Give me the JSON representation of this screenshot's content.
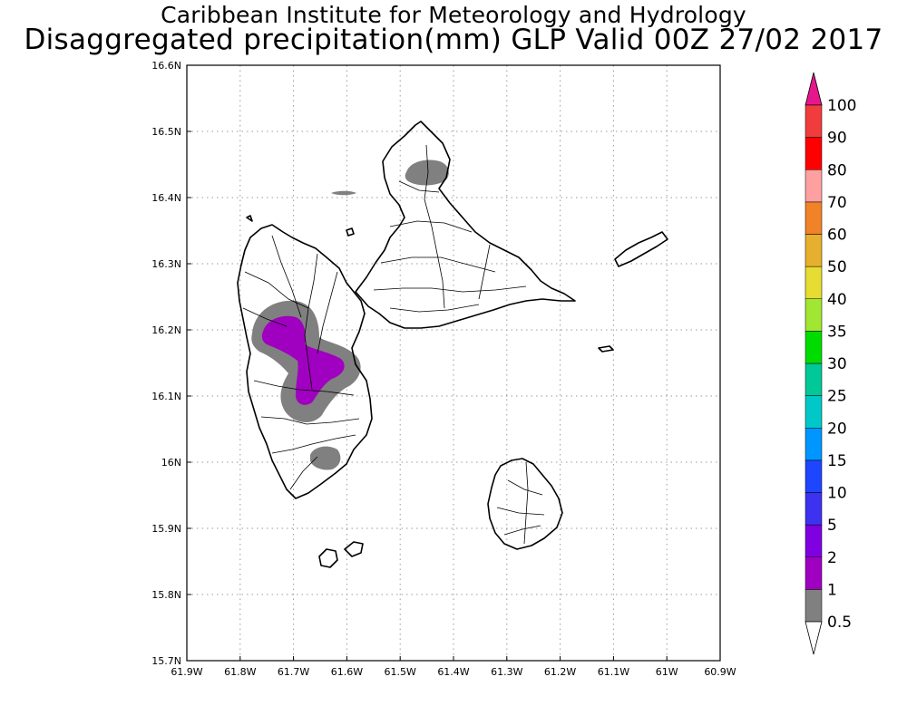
{
  "title_line1": "Caribbean Institute for Meteorology and Hydrology",
  "title_line2": "Disaggregated precipitation(mm) GLP Valid 00Z 27/02 2017",
  "axes": {
    "lon_range": [
      -61.9,
      -60.9
    ],
    "lat_range": [
      15.7,
      16.6
    ],
    "lon_ticks": [
      "61.9W",
      "61.8W",
      "61.7W",
      "61.6W",
      "61.5W",
      "61.4W",
      "61.3W",
      "61.2W",
      "61.1W",
      "61W",
      "60.9W"
    ],
    "lat_ticks": [
      "15.7N",
      "15.8N",
      "15.9N",
      "16N",
      "16.1N",
      "16.2N",
      "16.3N",
      "16.4N",
      "16.5N",
      "16.6N"
    ],
    "grid": "dotted"
  },
  "legend": {
    "items": [
      {
        "label": "0.5",
        "color": "#ffffff"
      },
      {
        "label": "1",
        "color": "#808080"
      },
      {
        "label": "2",
        "color": "#a000c0"
      },
      {
        "label": "5",
        "color": "#7f00e0"
      },
      {
        "label": "10",
        "color": "#3c32f0"
      },
      {
        "label": "15",
        "color": "#1e46ff"
      },
      {
        "label": "20",
        "color": "#0096ff"
      },
      {
        "label": "25",
        "color": "#00c8c8"
      },
      {
        "label": "30",
        "color": "#00c896"
      },
      {
        "label": "35",
        "color": "#00dc00"
      },
      {
        "label": "40",
        "color": "#a0e632"
      },
      {
        "label": "50",
        "color": "#e6dc32"
      },
      {
        "label": "60",
        "color": "#e6af2d"
      },
      {
        "label": "70",
        "color": "#f08228"
      },
      {
        "label": "80",
        "color": "#ffa0a0"
      },
      {
        "label": "90",
        "color": "#ff0000"
      },
      {
        "label": "100",
        "color": "#f03c3c"
      }
    ],
    "top_arrow_color": "#e6168c",
    "bottom_arrow_color": "#ffffff"
  },
  "precip_colors": {
    "light": "#808080",
    "heavy": "#a000c0"
  }
}
